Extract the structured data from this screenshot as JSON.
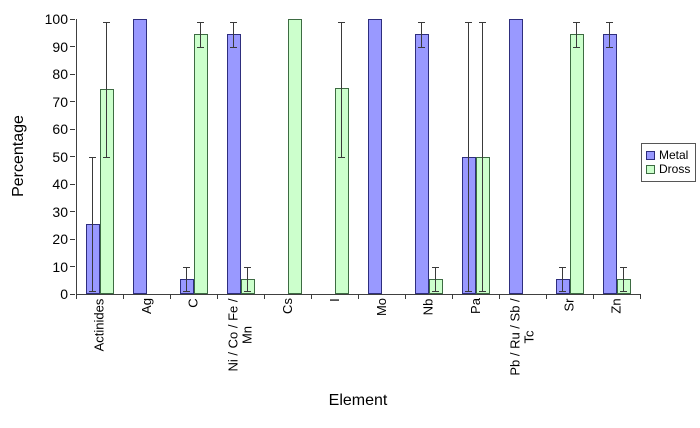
{
  "figure": {
    "background": "#ffffff",
    "axis_color": "#404040",
    "error_bar_color": "#3a3a3a",
    "legend_border_color": "#565656"
  },
  "chart_data": {
    "type": "bar",
    "title": "",
    "xlabel": "Element",
    "ylabel": "Percentage",
    "ylim": [
      0,
      100
    ],
    "ytick_step": 10,
    "grid": false,
    "legend_position": "right",
    "error_bars": true,
    "categories": [
      "Actinides",
      "Ag",
      "C",
      "Ni / Co / Fe / Mn",
      "Cs",
      "I",
      "Mo",
      "Nb",
      "Pa",
      "Pb / Ru / Sb / Tc",
      "Sr",
      "Zn"
    ],
    "category_label_lines": [
      [
        "Actinides"
      ],
      [
        "Ag"
      ],
      [
        "C"
      ],
      [
        "Ni / Co / Fe /",
        "Mn"
      ],
      [
        "Cs"
      ],
      [
        "I"
      ],
      [
        "Mo"
      ],
      [
        "Nb"
      ],
      [
        "Pa"
      ],
      [
        "Pb / Ru / Sb /",
        "Tc"
      ],
      [
        "Sr"
      ],
      [
        "Zn"
      ]
    ],
    "series": [
      {
        "name": "Metal",
        "fill": "#9999FF",
        "border": "#2E2E7D",
        "values": [
          25.5,
          100,
          5.5,
          94.5,
          0,
          0,
          100,
          94.5,
          50,
          100,
          5.5,
          94.5
        ],
        "error_low": [
          1,
          null,
          1,
          90,
          null,
          null,
          null,
          90,
          1,
          null,
          1,
          90
        ],
        "error_high": [
          50,
          null,
          10,
          99,
          null,
          null,
          null,
          99,
          99,
          null,
          10,
          99
        ]
      },
      {
        "name": "Dross",
        "fill": "#CCFFCC",
        "border": "#3D6B42",
        "values": [
          74.5,
          0,
          94.5,
          5.5,
          100,
          75,
          0,
          5.5,
          50,
          0,
          94.5,
          5.5
        ],
        "error_low": [
          50,
          null,
          90,
          1,
          null,
          50,
          null,
          1,
          1,
          null,
          90,
          1
        ],
        "error_high": [
          99,
          null,
          99,
          10,
          null,
          99,
          null,
          10,
          99,
          null,
          99,
          10
        ]
      }
    ]
  }
}
